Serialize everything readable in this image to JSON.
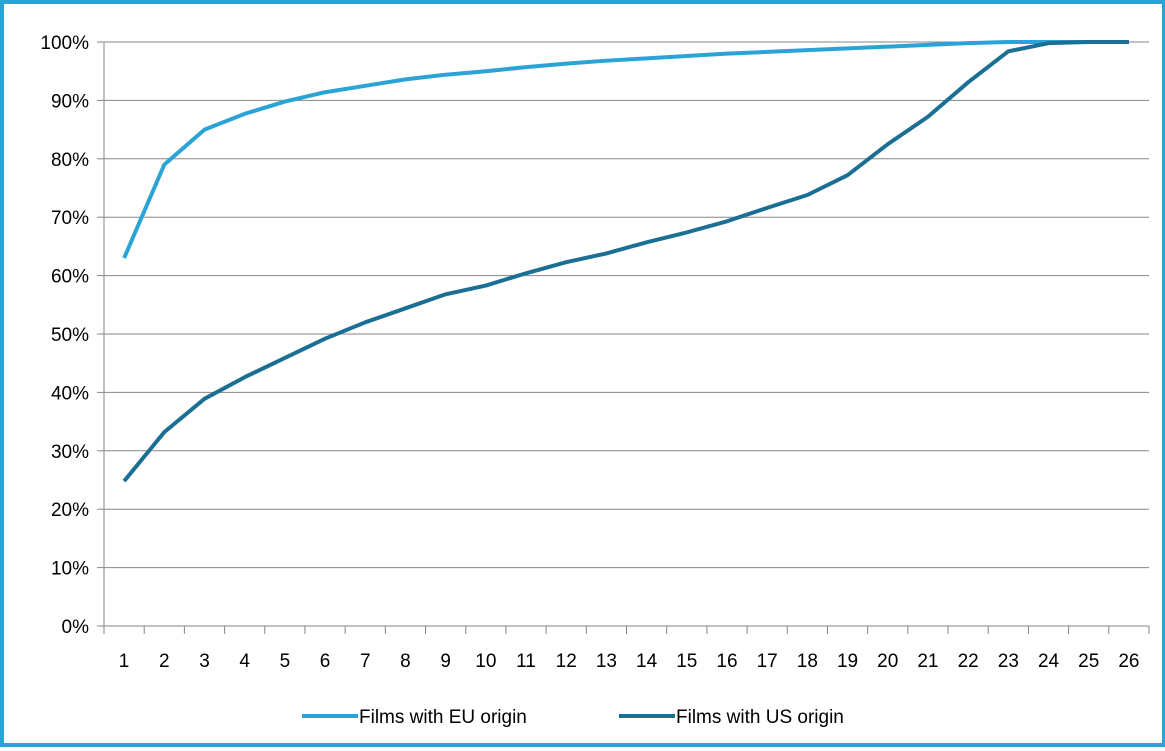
{
  "chart_data": {
    "type": "line",
    "title": "",
    "xlabel": "",
    "ylabel": "",
    "x": [
      1,
      2,
      3,
      4,
      5,
      6,
      7,
      8,
      9,
      10,
      11,
      12,
      13,
      14,
      15,
      16,
      17,
      18,
      19,
      20,
      21,
      22,
      23,
      24,
      25,
      26
    ],
    "y_ticks": [
      "0%",
      "10%",
      "20%",
      "30%",
      "40%",
      "50%",
      "60%",
      "70%",
      "80%",
      "90%",
      "100%"
    ],
    "ylim": [
      0,
      100
    ],
    "grid": "horizontal",
    "legend_position": "bottom",
    "series": [
      {
        "name": "Films with EU origin",
        "color": "#2aa3d6",
        "values": [
          63,
          79,
          85,
          87.7,
          89.8,
          91.4,
          92.5,
          93.6,
          94.4,
          95.0,
          95.7,
          96.3,
          96.8,
          97.2,
          97.6,
          98.0,
          98.3,
          98.6,
          98.9,
          99.2,
          99.5,
          99.8,
          100,
          100,
          100,
          100
        ]
      },
      {
        "name": "Films with US origin",
        "color": "#1c6f94",
        "values": [
          24.8,
          33.2,
          38.9,
          42.6,
          45.9,
          49.2,
          52.0,
          54.4,
          56.8,
          58.3,
          60.4,
          62.3,
          63.8,
          65.7,
          67.4,
          69.3,
          71.6,
          73.8,
          77.2,
          82.5,
          87.2,
          93.1,
          98.4,
          99.8,
          100,
          100
        ]
      }
    ]
  }
}
